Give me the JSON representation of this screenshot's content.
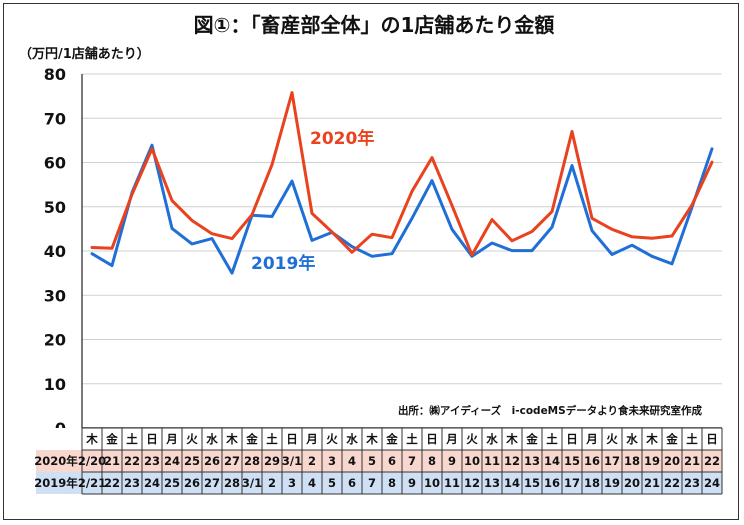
{
  "chart_data": {
    "type": "line",
    "title": "図①：「畜産部全体」の1店舗あたり金額",
    "ylabel": "（万円/1店舗あたり）",
    "ylim": [
      0,
      80
    ],
    "yticks": [
      "0",
      "10",
      "20",
      "30",
      "40",
      "50",
      "60",
      "70",
      "80"
    ],
    "grid": "horizontal",
    "weekdays": [
      "木",
      "金",
      "土",
      "日",
      "月",
      "火",
      "水",
      "木",
      "金",
      "土",
      "日",
      "月",
      "火",
      "水",
      "木",
      "金",
      "土",
      "日",
      "月",
      "火",
      "水",
      "木",
      "金",
      "土",
      "日",
      "月",
      "火",
      "水",
      "木",
      "金",
      "土",
      "日"
    ],
    "rows": [
      {
        "name": "2020年",
        "dates": [
          "2/20",
          "21",
          "22",
          "23",
          "24",
          "25",
          "26",
          "27",
          "28",
          "29",
          "3/1",
          "2",
          "3",
          "4",
          "5",
          "6",
          "7",
          "8",
          "9",
          "10",
          "11",
          "12",
          "13",
          "14",
          "15",
          "16",
          "17",
          "18",
          "19",
          "20",
          "21",
          "22"
        ]
      },
      {
        "name": "2019年",
        "dates": [
          "2/21",
          "22",
          "23",
          "24",
          "25",
          "26",
          "27",
          "28",
          "3/1",
          "2",
          "3",
          "4",
          "5",
          "6",
          "7",
          "8",
          "9",
          "10",
          "11",
          "12",
          "13",
          "14",
          "15",
          "16",
          "17",
          "18",
          "19",
          "20",
          "21",
          "22",
          "23",
          "24"
        ]
      }
    ],
    "series": [
      {
        "name": "2020年",
        "color": "#e8421e",
        "values": [
          40.8,
          40.6,
          52.8,
          63.1,
          51.4,
          46.9,
          43.9,
          42.8,
          48.2,
          59.5,
          75.8,
          48.5,
          44.3,
          39.7,
          43.8,
          43.0,
          53.5,
          61.1,
          50.3,
          39.1,
          47.1,
          42.3,
          44.4,
          48.9,
          67.0,
          47.4,
          44.9,
          43.2,
          42.9,
          43.4,
          50.4,
          60.1
        ]
      },
      {
        "name": "2019年",
        "color": "#1f6fd6",
        "values": [
          39.4,
          36.7,
          53.2,
          63.9,
          45.1,
          41.6,
          42.8,
          35.0,
          48.1,
          47.8,
          55.8,
          42.4,
          44.2,
          41.0,
          38.8,
          39.4,
          47.4,
          55.9,
          44.9,
          38.8,
          41.8,
          40.1,
          40.1,
          45.4,
          59.3,
          44.6,
          39.2,
          41.3,
          38.8,
          37.1,
          49.9,
          63.1
        ]
      }
    ],
    "source": "出所：㈱アイディーズ　i-codeMSデータより食未来研究室作成"
  }
}
